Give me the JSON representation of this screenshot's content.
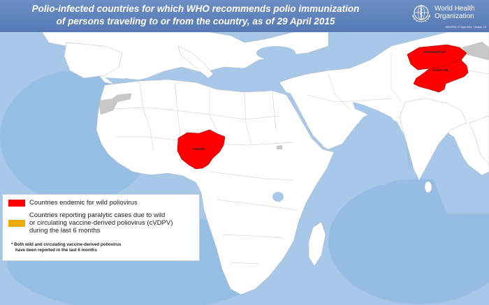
{
  "header": {
    "title_lines": [
      "Polio-infected countries for which WHO recommends polio immunization",
      "of persons traveling to or from the country, as of 29 April 2015"
    ],
    "organization_lines": [
      "World Health",
      "Organization"
    ],
    "map_reference": "WHO/POL 27 April 2015 · Version 1.0"
  },
  "map": {
    "countries": {
      "nigeria": "NIGERIA",
      "afghanistan": "AFGHANISTAN",
      "pakistan": "PAKISTAN"
    }
  },
  "legend": {
    "items": [
      {
        "color": "#ff0000",
        "label_lines": [
          "Countries endemic for wild poliovirus"
        ]
      },
      {
        "color": "#f2a900",
        "label_lines": [
          "Countries reporting paralytic cases due to wild",
          "or circulating vaccine-derived poliovirus (cVDPV)",
          "during the last 6 months"
        ]
      }
    ],
    "note_lines": [
      "* Both wild and circulating vaccine-derived poliovirus",
      "have been reported in the last 6 months"
    ]
  },
  "colors": {
    "ocean": "#a7c8e8",
    "land": "#ffffff",
    "endemic": "#ff0000",
    "cvdpv": "#f2a900",
    "no_data": "#c8c8c8",
    "header": "#5b7dba"
  }
}
